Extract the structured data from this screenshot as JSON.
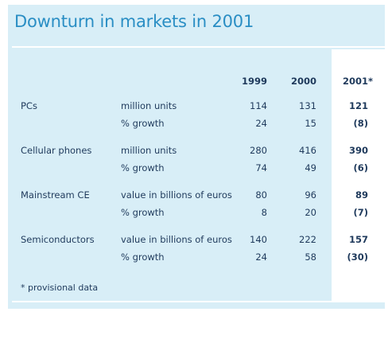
{
  "title": "Downturn in markets in 2001",
  "columns": [
    "1999",
    "2000",
    "2001*"
  ],
  "rows": [
    {
      "label": "PCs",
      "unit": "million units",
      "v1999": "114",
      "v2000": "131",
      "v2001": "121"
    },
    {
      "label": "",
      "unit": "% growth",
      "v1999": "24",
      "v2000": "15",
      "v2001": "(8)"
    },
    {
      "label": "Cellular phones",
      "unit": "million units",
      "v1999": "280",
      "v2000": "416",
      "v2001": "390"
    },
    {
      "label": "",
      "unit": "% growth",
      "v1999": "74",
      "v2000": "49",
      "v2001": "(6)"
    },
    {
      "label": "Mainstream CE",
      "unit": "value in billions of euros",
      "v1999": "80",
      "v2000": "96",
      "v2001": "89"
    },
    {
      "label": "",
      "unit": "% growth",
      "v1999": "8",
      "v2000": "20",
      "v2001": "(7)"
    },
    {
      "label": "Semiconductors",
      "unit": "value in billions of euros",
      "v1999": "140",
      "v2000": "222",
      "v2001": "157"
    },
    {
      "label": "",
      "unit": "% growth",
      "v1999": "24",
      "v2000": "58",
      "v2001": "(30)"
    }
  ],
  "footnote": "* provisional data",
  "colors": {
    "panel": "#d8eef7",
    "title": "#2a8ec4",
    "text": "#1f3a5c"
  }
}
